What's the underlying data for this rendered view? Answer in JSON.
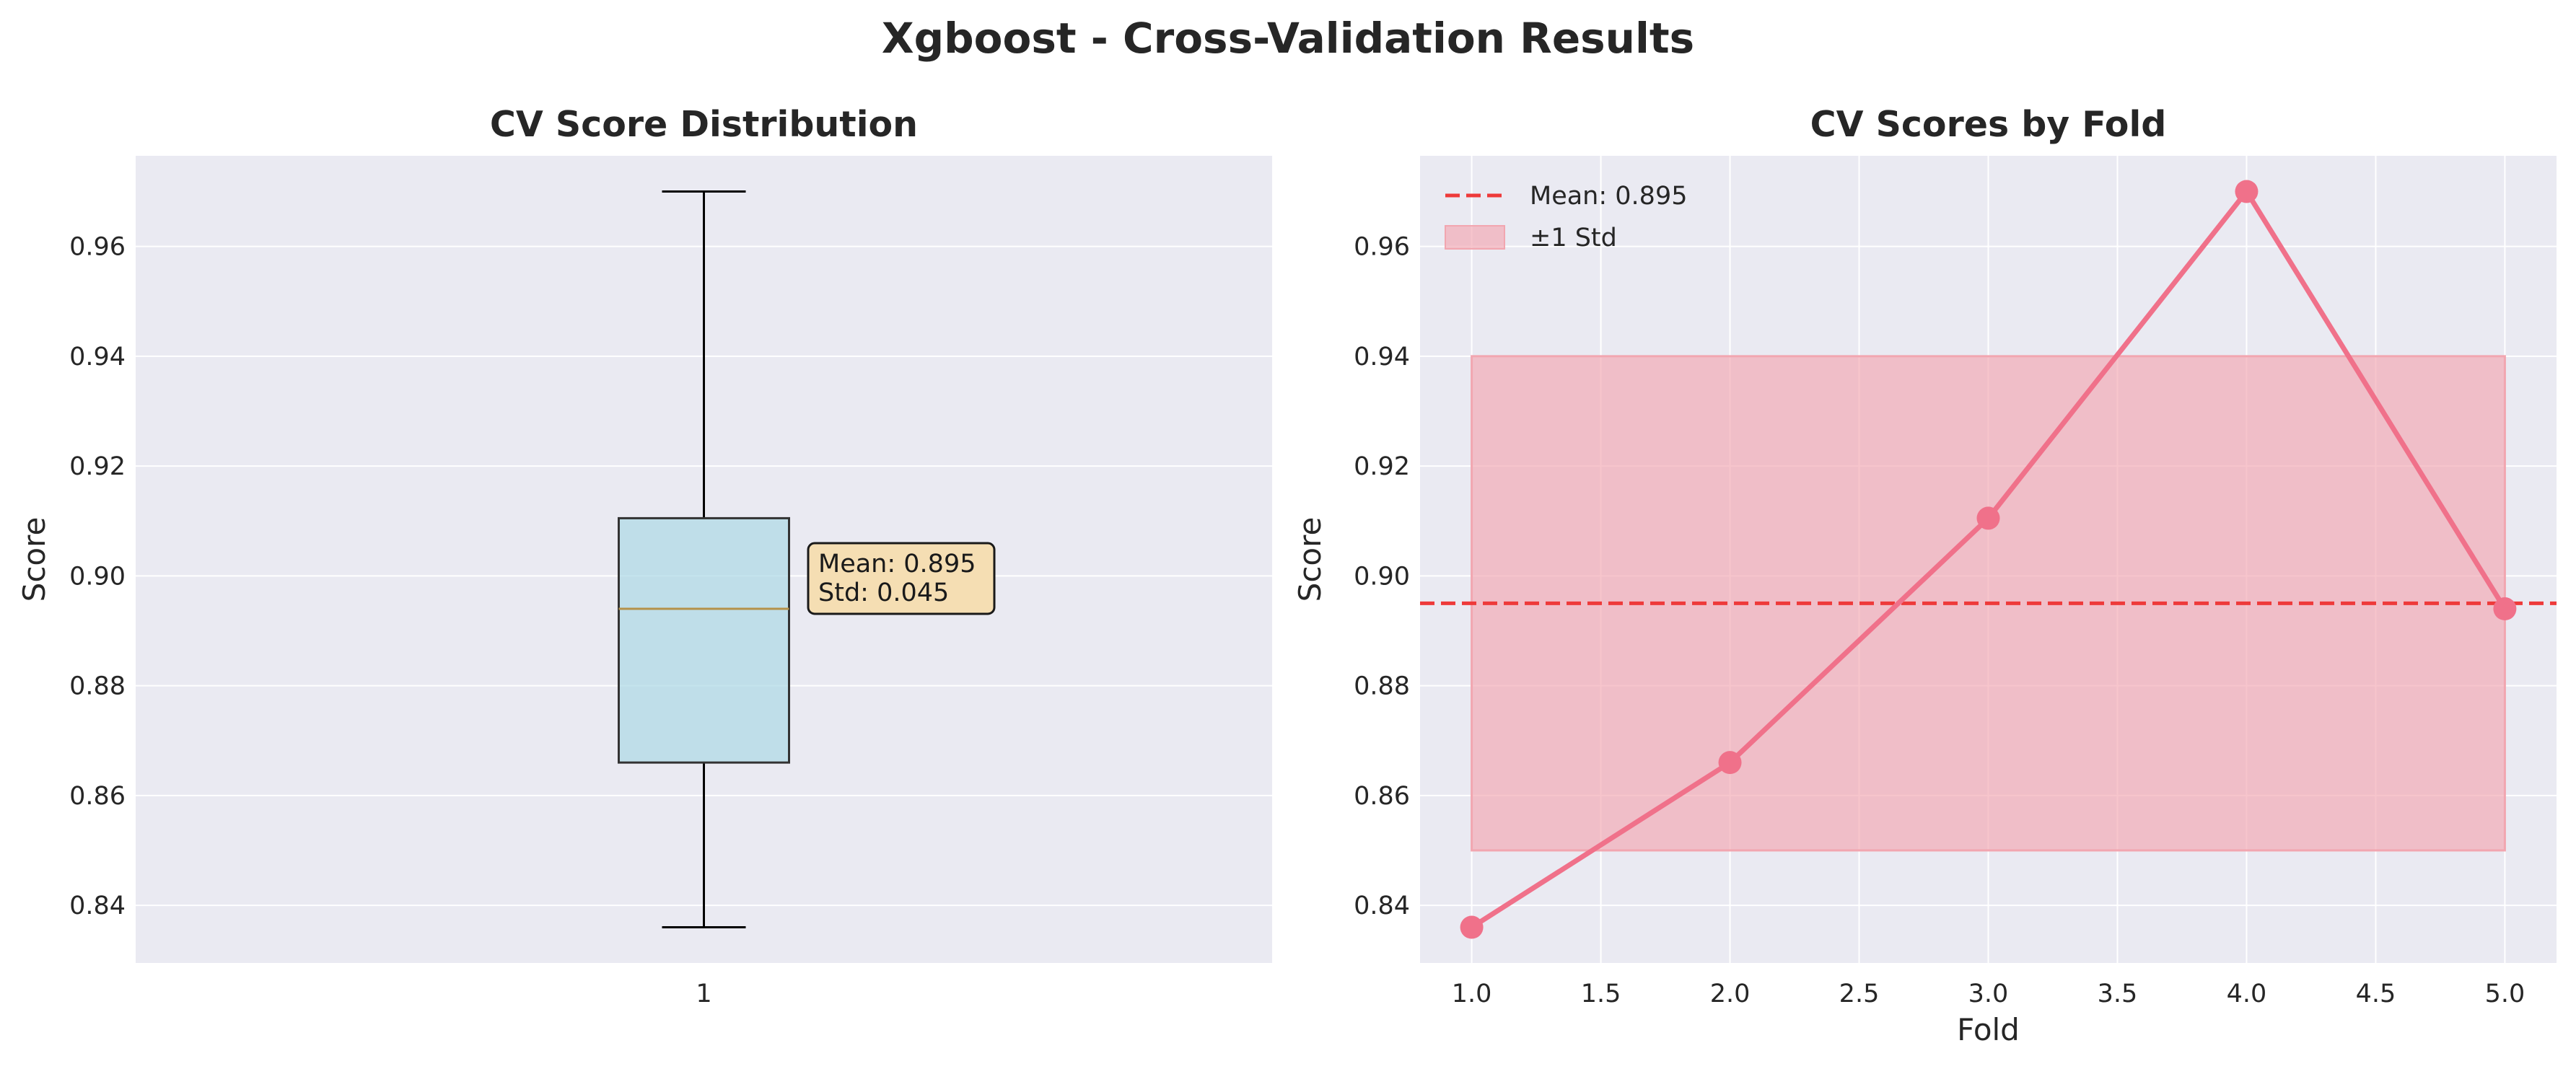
{
  "figure": {
    "title": "Xgboost - Cross-Validation Results"
  },
  "colors": {
    "axes_background": "#eaeaf2",
    "grid": "#ffffff",
    "box_fill": "#add8e6",
    "median_line": "#b5914a",
    "annotation_fill": "#f5deb3",
    "series_line": "#f0718a",
    "mean_line": "#ee3a3a",
    "std_band": "#f2a6b0"
  },
  "chart_data": [
    {
      "type": "box",
      "title": "CV Score Distribution",
      "xlabel": "",
      "ylabel": "Score",
      "categories": [
        "1"
      ],
      "box": {
        "whisker_low": 0.836,
        "q1": 0.866,
        "median": 0.894,
        "q3": 0.9105,
        "whisker_high": 0.97
      },
      "annotation": [
        "Mean: 0.895",
        "Std: 0.045"
      ],
      "ylim": [
        0.8295,
        0.9765
      ],
      "yticks": [
        0.84,
        0.86,
        0.88,
        0.9,
        0.92,
        0.94,
        0.96
      ],
      "ytick_labels": [
        "0.84",
        "0.86",
        "0.88",
        "0.90",
        "0.92",
        "0.94",
        "0.96"
      ],
      "grid": true
    },
    {
      "type": "line",
      "title": "CV Scores by Fold",
      "xlabel": "Fold",
      "ylabel": "Score",
      "x": [
        1,
        2,
        3,
        4,
        5
      ],
      "values": [
        0.836,
        0.866,
        0.9105,
        0.97,
        0.894
      ],
      "mean": 0.895,
      "std_band": [
        0.85,
        0.94
      ],
      "legend": [
        "Mean: 0.895",
        "±1 Std"
      ],
      "legend_position": "upper-left",
      "xlim": [
        0.8,
        5.2
      ],
      "ylim": [
        0.8295,
        0.9765
      ],
      "xticks": [
        1.0,
        1.5,
        2.0,
        2.5,
        3.0,
        3.5,
        4.0,
        4.5,
        5.0
      ],
      "xtick_labels": [
        "1.0",
        "1.5",
        "2.0",
        "2.5",
        "3.0",
        "3.5",
        "4.0",
        "4.5",
        "5.0"
      ],
      "yticks": [
        0.84,
        0.86,
        0.88,
        0.9,
        0.92,
        0.94,
        0.96
      ],
      "ytick_labels": [
        "0.84",
        "0.86",
        "0.88",
        "0.90",
        "0.92",
        "0.94",
        "0.96"
      ],
      "grid": true
    }
  ]
}
